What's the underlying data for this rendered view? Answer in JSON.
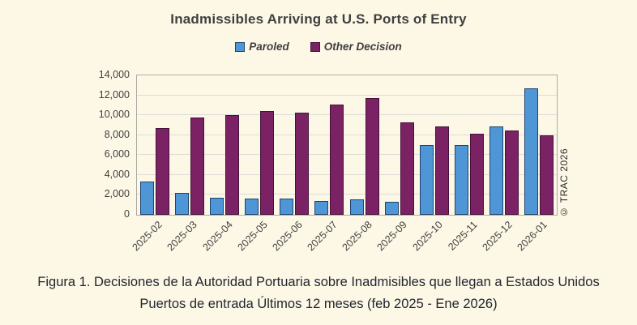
{
  "title": "Inadmissibles Arriving at U.S. Ports of Entry",
  "legend": [
    {
      "label": "Paroled",
      "color": "#4E96D5",
      "border_color": "#1D4570"
    },
    {
      "label": "Other Decision",
      "color": "#7B2264",
      "border_color": "#43123A"
    }
  ],
  "watermark": "© TRAC 2026",
  "caption": {
    "line1": "Figura 1. Decisiones de la Autoridad Portuaria sobre Inadmisibles que llegan a Estados Unidos",
    "line2": "Puertos de entrada Últimos 12 meses (feb 2025 - Ene 2026)"
  },
  "chart_data": {
    "type": "bar",
    "title": "Inadmissibles Arriving at U.S. Ports of Entry",
    "categories": [
      "2025-02",
      "2025-03",
      "2025-04",
      "2025-05",
      "2025-06",
      "2025-07",
      "2025-08",
      "2025-09",
      "2025-10",
      "2025-11",
      "2025-12",
      "2026-01"
    ],
    "series": [
      {
        "name": "Paroled",
        "color": "#4E96D5",
        "border_color": "#1D4570",
        "values": [
          3300,
          2200,
          1700,
          1650,
          1650,
          1400,
          1550,
          1300,
          7000,
          7000,
          8900,
          12700
        ]
      },
      {
        "name": "Other Decision",
        "color": "#7B2264",
        "border_color": "#43123A",
        "values": [
          8700,
          9800,
          10000,
          10400,
          10250,
          11100,
          11700,
          9300,
          8900,
          8100,
          8450,
          7950
        ]
      }
    ],
    "ylim": [
      0,
      14000
    ],
    "ytick_step": 2000,
    "ytick_labels": [
      "0",
      "2,000",
      "4,000",
      "6,000",
      "8,000",
      "10,000",
      "12,000",
      "14,000"
    ],
    "grid": true,
    "legend_position": "top",
    "xlabel": "",
    "ylabel": ""
  }
}
